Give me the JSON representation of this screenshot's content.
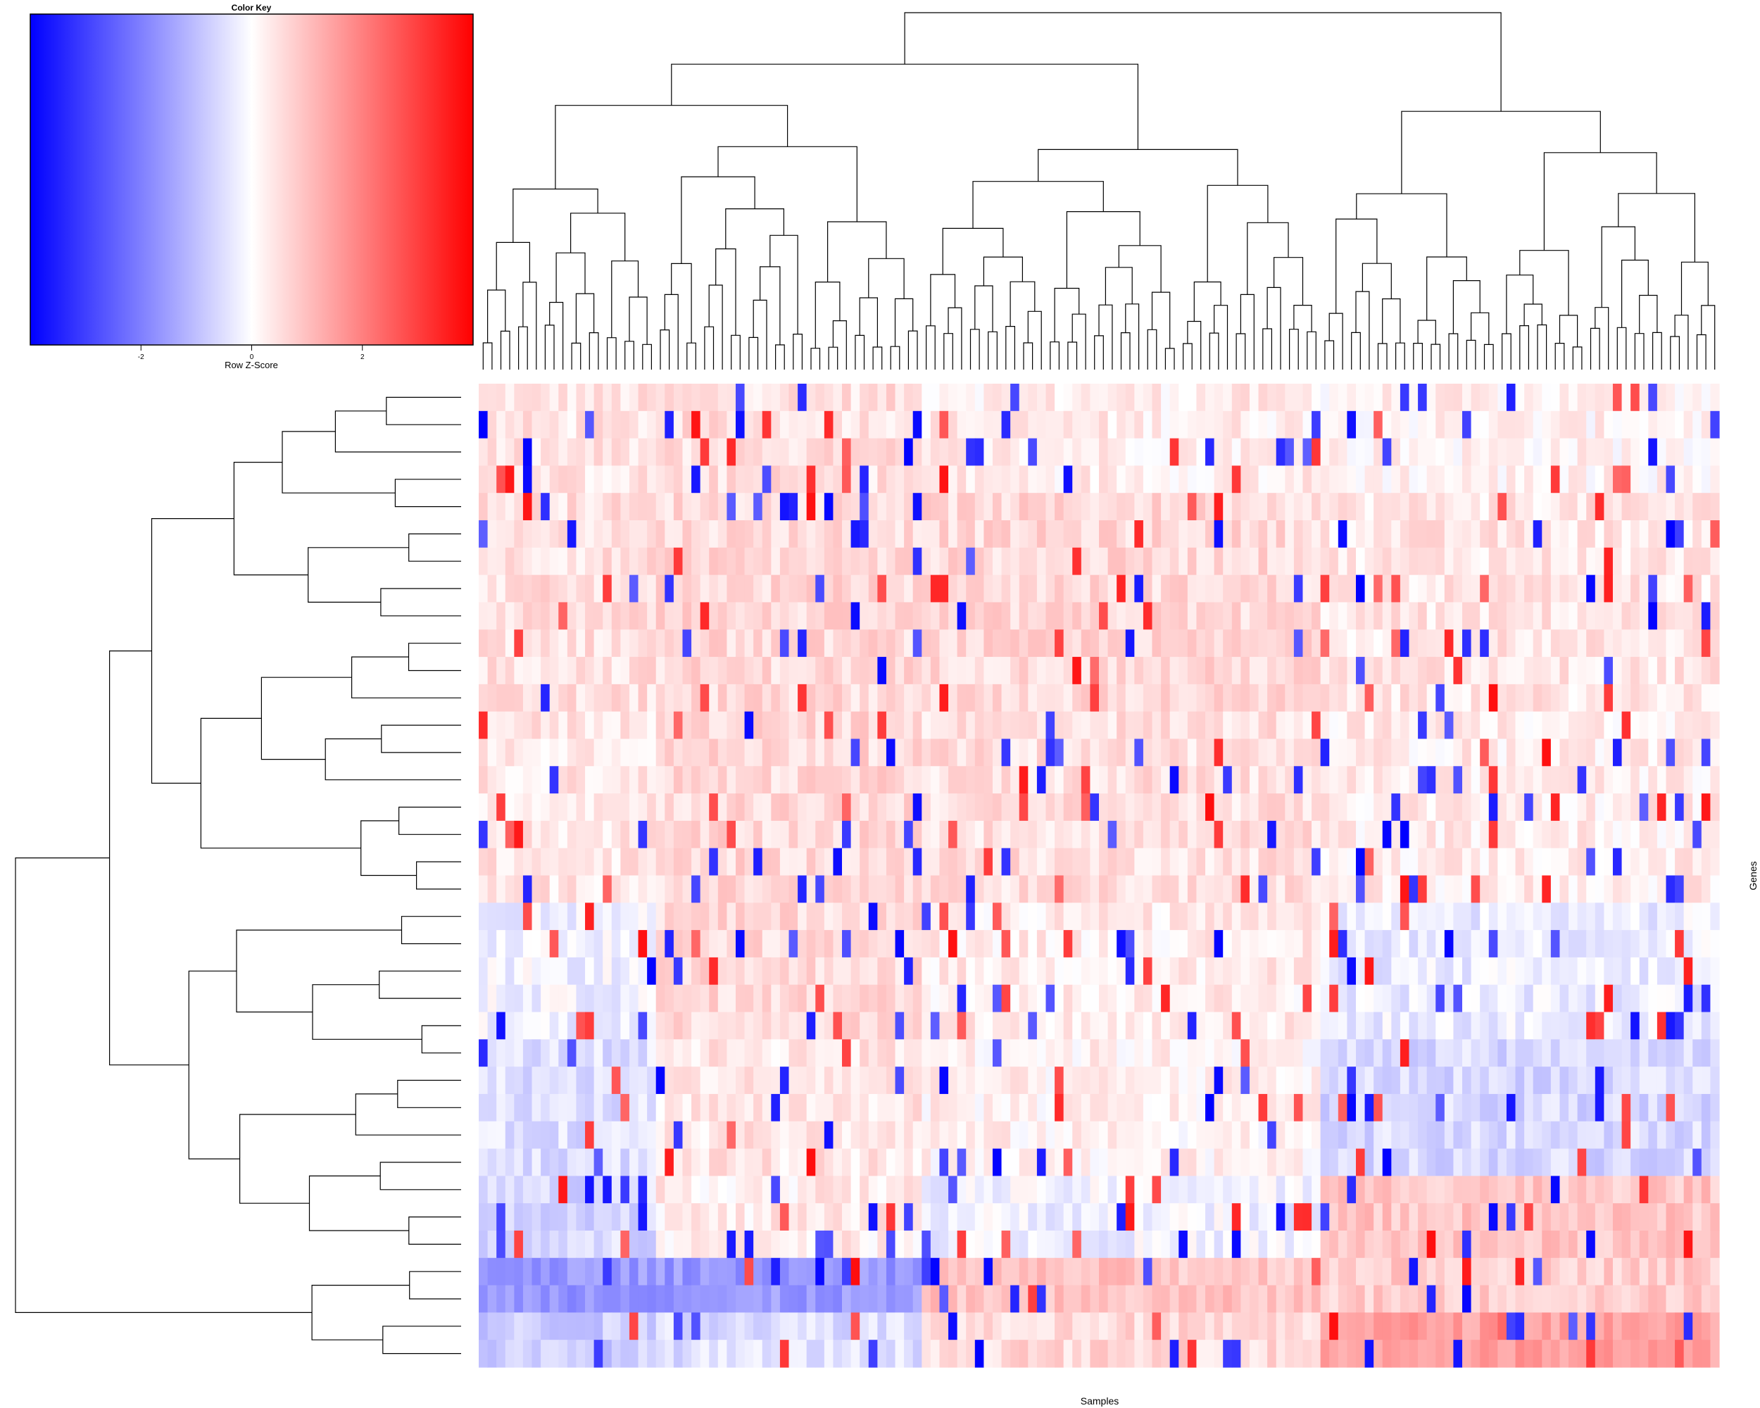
{
  "chart_data": {
    "type": "heatmap",
    "title": "",
    "xlabel": "Samples",
    "ylabel": "Genes",
    "color_key": {
      "title": "Color Key",
      "label": "Row Z-Score",
      "ticks": [
        -2,
        0,
        2
      ],
      "range": [
        -4,
        4
      ],
      "colors": [
        "#0000ff",
        "#ffffff",
        "#ff0000"
      ]
    },
    "row_dendrogram": true,
    "column_dendrogram": true,
    "n_rows": 36,
    "n_columns": 140,
    "row_bands": [
      {
        "rows": [
          0,
          3
        ],
        "values": [
          0.4,
          0.5,
          0.3,
          0.2
        ]
      },
      {
        "rows": [
          4,
          11
        ],
        "values": [
          0.5,
          0.6,
          0.6,
          0.4
        ]
      },
      {
        "rows": [
          12,
          18
        ],
        "values": [
          0.4,
          0.6,
          0.5,
          0.3
        ]
      },
      {
        "rows": [
          19,
          23
        ],
        "values": [
          -0.2,
          0.6,
          0.3,
          -0.3
        ]
      },
      {
        "rows": [
          24,
          28
        ],
        "values": [
          -0.5,
          0.4,
          0.2,
          -0.6
        ]
      },
      {
        "rows": [
          29,
          31
        ],
        "values": [
          -0.6,
          0.3,
          -0.2,
          0.9
        ]
      },
      {
        "rows": [
          32,
          33
        ],
        "values": [
          -1.6,
          -1.6,
          0.9,
          0.8
        ]
      },
      {
        "rows": [
          34,
          35
        ],
        "values": [
          -0.8,
          -0.5,
          0.6,
          1.5
        ]
      }
    ],
    "column_groups": [
      20,
      50,
      95,
      140
    ],
    "value_precision": 1
  }
}
